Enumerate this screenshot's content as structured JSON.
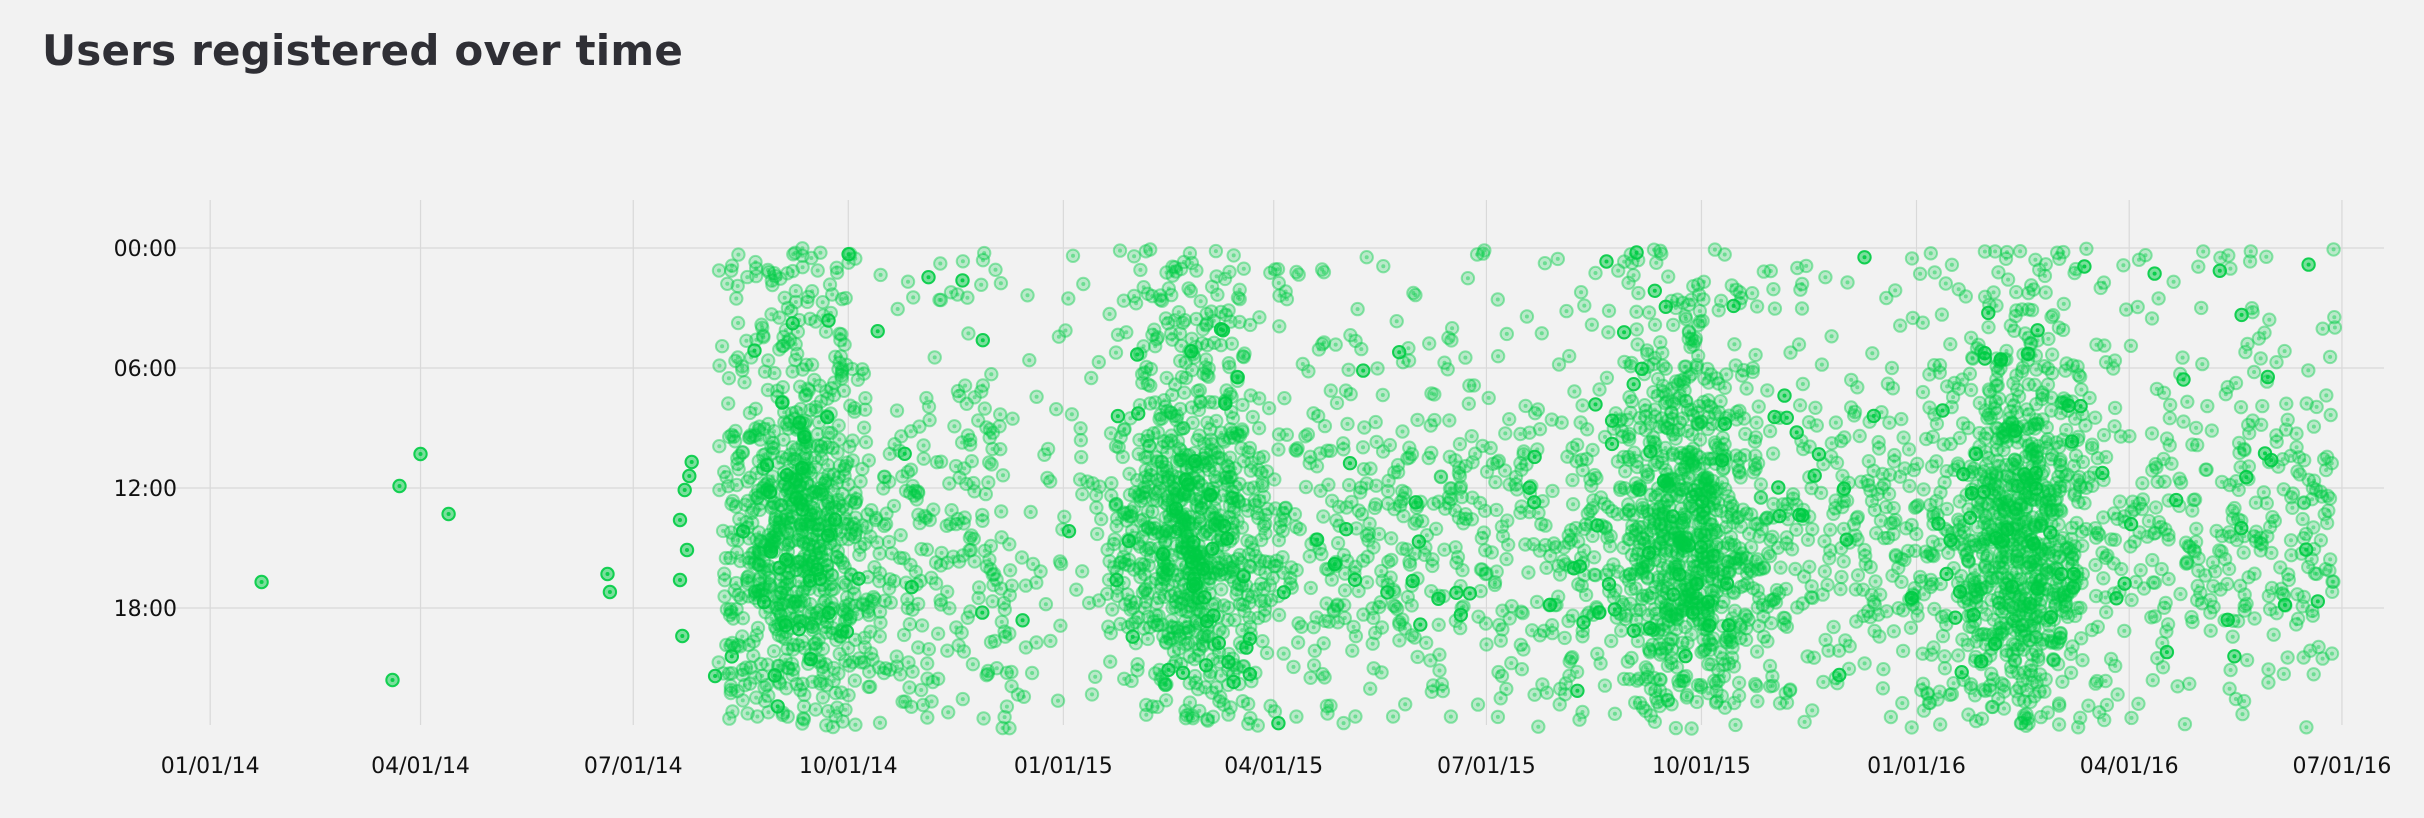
{
  "title": "Users registered over time",
  "colors": {
    "point": "#00cc44",
    "grid": "#d9d9d9",
    "background": "#f2f2f2"
  },
  "chart_data": {
    "type": "scatter",
    "title": "Users registered over time",
    "xlabel": "",
    "ylabel": "",
    "x_axis": {
      "type": "date",
      "range": [
        "2013-11-20",
        "2016-07-19"
      ],
      "ticks": [
        {
          "date": "2014-01-01",
          "label": "01/01/14"
        },
        {
          "date": "2014-04-01",
          "label": "04/01/14"
        },
        {
          "date": "2014-07-01",
          "label": "07/01/14"
        },
        {
          "date": "2014-10-01",
          "label": "10/01/14"
        },
        {
          "date": "2015-01-01",
          "label": "01/01/15"
        },
        {
          "date": "2015-04-01",
          "label": "04/01/15"
        },
        {
          "date": "2015-07-01",
          "label": "07/01/15"
        },
        {
          "date": "2015-10-01",
          "label": "10/01/15"
        },
        {
          "date": "2016-01-01",
          "label": "01/01/16"
        },
        {
          "date": "2016-04-01",
          "label": "04/01/16"
        },
        {
          "date": "2016-07-01",
          "label": "07/01/16"
        }
      ]
    },
    "y_axis": {
      "type": "time_of_day",
      "range": [
        0,
        24
      ],
      "reversed": true,
      "ticks": [
        {
          "hour": 0,
          "label": "00:00"
        },
        {
          "hour": 6,
          "label": "06:00"
        },
        {
          "hour": 12,
          "label": "12:00"
        },
        {
          "hour": 18,
          "label": "18:00"
        }
      ]
    },
    "grid": true,
    "point_style": "ringed-circle",
    "sparse_points": [
      {
        "date": "2014-01-23",
        "hour": 16.7
      },
      {
        "date": "2014-03-20",
        "hour": 21.6
      },
      {
        "date": "2014-03-23",
        "hour": 11.9
      },
      {
        "date": "2014-04-01",
        "hour": 10.3
      },
      {
        "date": "2014-04-13",
        "hour": 13.3
      },
      {
        "date": "2014-06-20",
        "hour": 16.3
      },
      {
        "date": "2014-06-21",
        "hour": 17.2
      },
      {
        "date": "2014-07-21",
        "hour": 13.6
      },
      {
        "date": "2014-07-21",
        "hour": 16.6
      },
      {
        "date": "2014-07-22",
        "hour": 19.4
      },
      {
        "date": "2014-07-23",
        "hour": 12.1
      },
      {
        "date": "2014-07-24",
        "hour": 15.1
      },
      {
        "date": "2014-07-25",
        "hour": 11.4
      },
      {
        "date": "2014-07-26",
        "hour": 10.7
      },
      {
        "date": "2014-08-05",
        "hour": 21.4
      }
    ],
    "dense_period": {
      "start": "2014-08-06",
      "end": "2016-06-28",
      "hour_range": [
        0,
        24
      ],
      "approx_points": 5000
    },
    "density_peaks": [
      {
        "date": "2014-09-10",
        "hour_range": [
          4,
          24
        ]
      },
      {
        "date": "2015-02-25",
        "hour_range": [
          6,
          24
        ]
      },
      {
        "date": "2015-09-25",
        "hour_range": [
          6,
          24
        ]
      },
      {
        "date": "2016-02-15",
        "hour_range": [
          6,
          24
        ]
      }
    ],
    "sparse_gap": {
      "start": "2014-12-10",
      "end": "2015-01-20"
    }
  }
}
